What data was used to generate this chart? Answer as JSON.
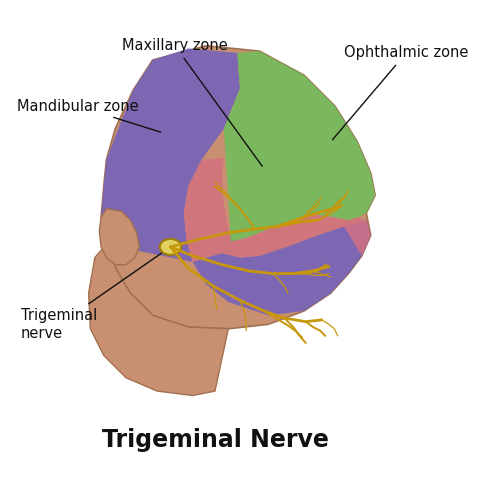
{
  "title": "Trigeminal Nerve",
  "title_fontsize": 17,
  "title_fontweight": "bold",
  "background_color": "#ffffff",
  "labels": {
    "maxillary_zone": "Maxillary zone",
    "ophthalmic_zone": "Ophthalmic zone",
    "mandibular_zone": "Mandibular zone",
    "trigeminal_nerve": "Trigeminal\nnerve"
  },
  "label_fontsize": 10.5,
  "zone_colors": {
    "green": "#6dbf5a",
    "purple": "#7060c0",
    "pink": "#d47080"
  },
  "skin_color": "#c89070",
  "skin_edge": "#a07050",
  "nerve_color": "#c8960a",
  "ganglion_color": "#e0d060",
  "annotation_color": "#111111"
}
